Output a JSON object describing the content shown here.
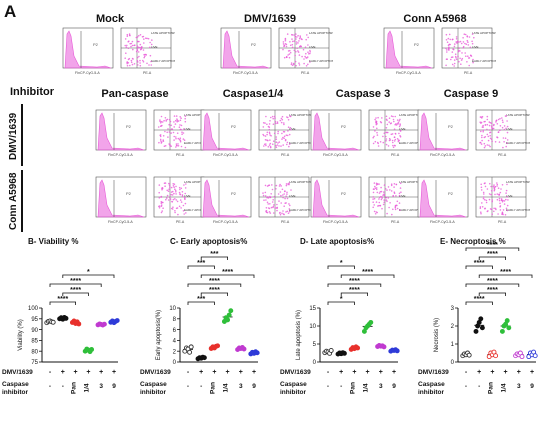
{
  "figure": {
    "panel_letter": "A",
    "top_columns": [
      "Mock",
      "DMV/1639",
      "Conn A5968"
    ],
    "inhibitor_label": "Inhibitor",
    "inhibitor_columns": [
      "Pan-caspase",
      "Caspase1/4",
      "Caspase 3",
      "Caspase 9"
    ],
    "row_labels": [
      "DMV/1639",
      "Conn A5968"
    ],
    "flow": {
      "histogram_color": "#e85ad8",
      "hist_xlabel": "FInCP-CyG-5-A",
      "dot_xlabel": "PE-A",
      "gate_label": "P2",
      "quadrant_labels": [
        "LATE APOPTOSIS",
        "LIVE",
        "EARLY APOPTOSIS"
      ]
    }
  },
  "chart_data": [
    {
      "type": "scatter",
      "title": "B- Viability %",
      "ylabel": "Viability (%)",
      "ylim": [
        75,
        100
      ],
      "yticks": [
        75,
        80,
        85,
        90,
        95,
        100
      ],
      "significance": [
        "****",
        "****",
        "****",
        "*"
      ],
      "groups": [
        {
          "color": "#333333",
          "marker": "open-circle",
          "values": [
            93.2,
            93.8,
            94.0,
            93.6,
            93.4
          ]
        },
        {
          "color": "#111111",
          "marker": "filled-circle",
          "values": [
            95.0,
            95.5,
            94.8,
            95.6,
            95.2
          ]
        },
        {
          "color": "#e8312c",
          "marker": "filled-circle",
          "values": [
            93.3,
            94.0,
            92.8,
            93.6,
            92.6
          ]
        },
        {
          "color": "#2fbf3a",
          "marker": "filled-circle",
          "values": [
            80.0,
            81.0,
            80.5,
            79.8,
            80.8
          ]
        },
        {
          "color": "#c03ad0",
          "marker": "filled-circle",
          "values": [
            92.2,
            92.6,
            92.4,
            92.1,
            92.5
          ]
        },
        {
          "color": "#2f3bd8",
          "marker": "filled-circle",
          "values": [
            93.4,
            94.0,
            93.2,
            93.8,
            94.2
          ]
        }
      ]
    },
    {
      "type": "scatter",
      "title": "C- Early apoptosis%",
      "ylabel": "Early apoptosis(%)",
      "ylim": [
        0,
        10
      ],
      "yticks": [
        0,
        2,
        4,
        6,
        8,
        10
      ],
      "significance": [
        "***",
        "****",
        "****",
        "****",
        "***",
        "***"
      ],
      "groups": [
        {
          "color": "#333333",
          "marker": "open-circle",
          "values": [
            2.0,
            2.6,
            2.4,
            1.8,
            2.8
          ]
        },
        {
          "color": "#111111",
          "marker": "filled-circle",
          "values": [
            0.6,
            0.8,
            0.7,
            0.9,
            0.8
          ]
        },
        {
          "color": "#e8312c",
          "marker": "filled-circle",
          "values": [
            2.5,
            2.8,
            2.6,
            2.9,
            3.0
          ]
        },
        {
          "color": "#2fbf3a",
          "marker": "filled-circle",
          "values": [
            7.5,
            8.2,
            7.8,
            8.7,
            9.5
          ]
        },
        {
          "color": "#c03ad0",
          "marker": "filled-circle",
          "values": [
            2.3,
            2.6,
            2.5,
            2.7,
            2.4
          ]
        },
        {
          "color": "#2f3bd8",
          "marker": "filled-circle",
          "values": [
            1.5,
            1.8,
            1.6,
            1.9,
            1.7
          ]
        }
      ]
    },
    {
      "type": "scatter",
      "title": "D- Late apoptosis%",
      "ylabel": "Late apoptosis (%)",
      "ylim": [
        0,
        15
      ],
      "yticks": [
        0,
        5,
        10,
        15
      ],
      "significance": [
        "*",
        "****",
        "****",
        "****",
        "*"
      ],
      "groups": [
        {
          "color": "#333333",
          "marker": "open-circle",
          "values": [
            2.6,
            3.0,
            2.8,
            2.4,
            3.2
          ]
        },
        {
          "color": "#111111",
          "marker": "filled-circle",
          "values": [
            2.2,
            2.5,
            2.3,
            2.6,
            2.4
          ]
        },
        {
          "color": "#e8312c",
          "marker": "filled-circle",
          "values": [
            3.5,
            4.0,
            3.7,
            4.2,
            3.9
          ]
        },
        {
          "color": "#2fbf3a",
          "marker": "filled-circle",
          "values": [
            8.5,
            9.5,
            10.0,
            10.5,
            11.0
          ]
        },
        {
          "color": "#c03ad0",
          "marker": "filled-circle",
          "values": [
            4.3,
            4.6,
            4.4,
            4.5,
            4.2
          ]
        },
        {
          "color": "#2f3bd8",
          "marker": "filled-circle",
          "values": [
            3.0,
            3.3,
            3.2,
            3.4,
            3.1
          ]
        }
      ]
    },
    {
      "type": "scatter",
      "title": "E- Necroptosis %",
      "ylabel": "Necrosis (%)",
      "ylim": [
        0,
        3
      ],
      "yticks": [
        0,
        1,
        2,
        3
      ],
      "significance": [
        "****",
        "****",
        "****",
        "****",
        "****",
        "****",
        "****"
      ],
      "groups": [
        {
          "color": "#333333",
          "marker": "open-circle",
          "values": [
            0.35,
            0.45,
            0.4,
            0.5,
            0.38
          ]
        },
        {
          "color": "#111111",
          "marker": "filled-circle",
          "values": [
            1.7,
            2.0,
            2.2,
            2.4,
            1.9
          ]
        },
        {
          "color": "#e8312c",
          "marker": "open-circle",
          "values": [
            0.3,
            0.5,
            0.4,
            0.55,
            0.35
          ]
        },
        {
          "color": "#2fbf3a",
          "marker": "filled-circle",
          "values": [
            1.7,
            2.0,
            2.1,
            2.3,
            1.9
          ]
        },
        {
          "color": "#c03ad0",
          "marker": "open-circle",
          "values": [
            0.35,
            0.45,
            0.4,
            0.5,
            0.3
          ]
        },
        {
          "color": "#2f3bd8",
          "marker": "open-circle",
          "values": [
            0.3,
            0.5,
            0.4,
            0.55,
            0.35
          ]
        }
      ]
    }
  ],
  "xaxis_table": {
    "row1_label": "DMV/1639",
    "row1_values": [
      "-",
      "+",
      "+",
      "+",
      "+",
      "+"
    ],
    "row2_label_line1": "Caspase",
    "row2_label_line2": "inhibitor",
    "row2_values": [
      "-",
      "-",
      "Pan",
      "1/4",
      "3",
      "9"
    ]
  }
}
